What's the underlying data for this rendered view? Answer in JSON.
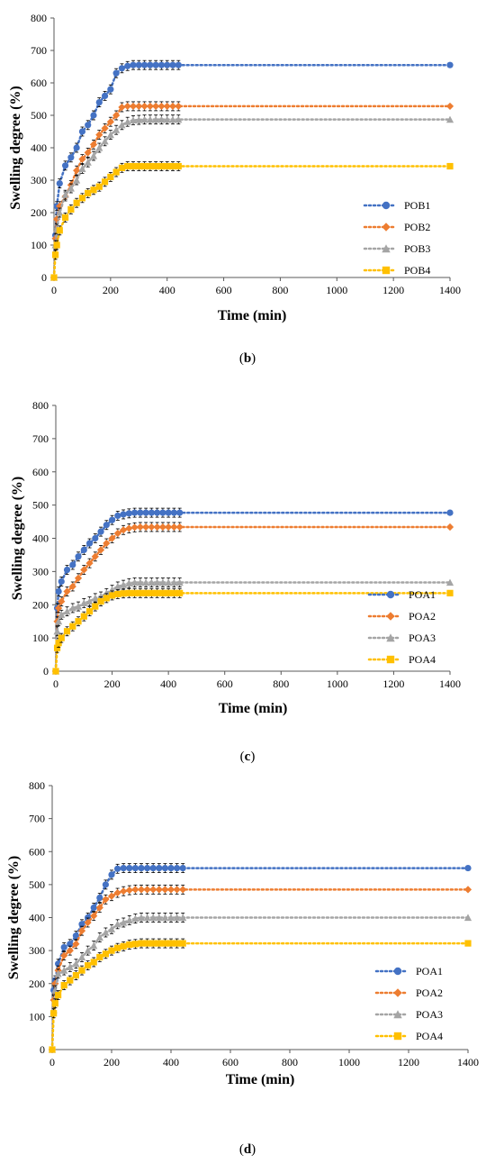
{
  "panels": [
    {
      "caption_letter": "b",
      "chart_data": {
        "type": "line",
        "title": "",
        "xlabel": "Time (min)",
        "ylabel": "Swelling degree (%)",
        "xlim": [
          0,
          1400
        ],
        "ylim": [
          0,
          800
        ],
        "xticks": [
          "0",
          "200",
          "400",
          "600",
          "800",
          "1000",
          "1200",
          "1400"
        ],
        "yticks": [
          "0",
          "100",
          "200",
          "300",
          "400",
          "500",
          "600",
          "700",
          "800"
        ],
        "legend_position": "right-lower",
        "grid": false,
        "x": [
          0,
          5,
          10,
          20,
          40,
          60,
          80,
          100,
          120,
          140,
          160,
          180,
          200,
          220,
          240,
          260,
          280,
          300,
          320,
          340,
          360,
          380,
          400,
          420,
          440,
          1400
        ],
        "series": [
          {
            "name": "POB1",
            "color": "#4472C4",
            "marker": "circle",
            "values": [
              0,
              130,
              220,
              290,
              345,
              370,
              400,
              450,
              470,
              500,
              540,
              560,
              580,
              630,
              645,
              652,
              655,
              655,
              655,
              655,
              655,
              655,
              655,
              655,
              655,
              655
            ]
          },
          {
            "name": "POB2",
            "color": "#ED7D31",
            "marker": "diamond",
            "values": [
              0,
              120,
              180,
              220,
              250,
              285,
              330,
              365,
              385,
              410,
              440,
              460,
              480,
              500,
              525,
              528,
              528,
              528,
              528,
              528,
              528,
              528,
              528,
              528,
              528,
              528
            ]
          },
          {
            "name": "POB3",
            "color": "#A5A5A5",
            "marker": "triangle",
            "values": [
              0,
              100,
              150,
              200,
              255,
              275,
              300,
              335,
              355,
              375,
              400,
              420,
              440,
              455,
              470,
              480,
              485,
              486,
              487,
              487,
              487,
              487,
              487,
              487,
              487,
              487
            ]
          },
          {
            "name": "POB4",
            "color": "#FFC000",
            "marker": "square",
            "values": [
              0,
              70,
              100,
              145,
              185,
              210,
              230,
              245,
              260,
              270,
              280,
              295,
              310,
              325,
              338,
              343,
              343,
              343,
              343,
              343,
              343,
              343,
              343,
              343,
              343,
              343
            ]
          }
        ]
      }
    },
    {
      "caption_letter": "c",
      "chart_data": {
        "type": "line",
        "title": "",
        "xlabel": "Time (min)",
        "ylabel": "Swelling degree (%)",
        "xlim": [
          0,
          1400
        ],
        "ylim": [
          0,
          800
        ],
        "xticks": [
          "0",
          "200",
          "400",
          "600",
          "800",
          "1000",
          "1200",
          "1400"
        ],
        "yticks": [
          "0",
          "100",
          "200",
          "300",
          "400",
          "500",
          "600",
          "700",
          "800"
        ],
        "legend_position": "right-lower",
        "grid": false,
        "x": [
          0,
          5,
          10,
          20,
          40,
          60,
          80,
          100,
          120,
          140,
          160,
          180,
          200,
          220,
          240,
          260,
          280,
          300,
          320,
          340,
          360,
          380,
          400,
          420,
          440,
          1400
        ],
        "series": [
          {
            "name": "POA1",
            "color": "#4472C4",
            "marker": "circle",
            "values": [
              0,
              190,
              240,
              270,
              305,
              320,
              345,
              365,
              385,
              400,
              420,
              440,
              455,
              468,
              472,
              475,
              477,
              477,
              477,
              477,
              477,
              477,
              477,
              477,
              477,
              477
            ]
          },
          {
            "name": "POA2",
            "color": "#ED7D31",
            "marker": "diamond",
            "values": [
              0,
              150,
              190,
              210,
              240,
              255,
              280,
              305,
              325,
              345,
              365,
              385,
              400,
              415,
              425,
              430,
              433,
              434,
              434,
              434,
              434,
              434,
              434,
              434,
              434,
              434
            ]
          },
          {
            "name": "POA3",
            "color": "#A5A5A5",
            "marker": "triangle",
            "values": [
              0,
              120,
              150,
              170,
              180,
              190,
              195,
              205,
              210,
              220,
              225,
              235,
              245,
              255,
              260,
              265,
              267,
              267,
              267,
              267,
              267,
              267,
              267,
              267,
              267,
              267
            ]
          },
          {
            "name": "POA4",
            "color": "#FFC000",
            "marker": "square",
            "values": [
              0,
              70,
              85,
              100,
              120,
              135,
              150,
              165,
              180,
              195,
              210,
              220,
              228,
              232,
              234,
              235,
              235,
              235,
              235,
              235,
              235,
              235,
              235,
              235,
              235,
              235
            ]
          }
        ]
      }
    },
    {
      "caption_letter": "d",
      "chart_data": {
        "type": "line",
        "title": "",
        "xlabel": "Time (min)",
        "ylabel": "Swelling degree (%)",
        "xlim": [
          0,
          1400
        ],
        "ylim": [
          0,
          800
        ],
        "xticks": [
          "0",
          "200",
          "400",
          "600",
          "800",
          "1000",
          "1200",
          "1400"
        ],
        "yticks": [
          "0",
          "100",
          "200",
          "300",
          "400",
          "500",
          "600",
          "700",
          "800"
        ],
        "legend_position": "right-lower",
        "grid": false,
        "x": [
          0,
          5,
          10,
          20,
          40,
          60,
          80,
          100,
          120,
          140,
          160,
          180,
          200,
          220,
          240,
          260,
          280,
          300,
          320,
          340,
          360,
          380,
          400,
          420,
          440,
          1400
        ],
        "series": [
          {
            "name": "POA1",
            "color": "#4472C4",
            "marker": "circle",
            "values": [
              0,
              180,
              210,
              260,
              310,
              320,
              345,
              380,
              400,
              430,
              460,
              500,
              530,
              548,
              550,
              550,
              550,
              550,
              550,
              550,
              550,
              550,
              550,
              550,
              550,
              550
            ]
          },
          {
            "name": "POA2",
            "color": "#ED7D31",
            "marker": "diamond",
            "values": [
              0,
              150,
              200,
              240,
              285,
              300,
              320,
              360,
              385,
              405,
              430,
              455,
              465,
              475,
              480,
              483,
              485,
              485,
              485,
              485,
              485,
              485,
              485,
              485,
              485,
              485
            ]
          },
          {
            "name": "POA3",
            "color": "#A5A5A5",
            "marker": "triangle",
            "values": [
              0,
              120,
              180,
              230,
              240,
              250,
              260,
              280,
              300,
              315,
              340,
              355,
              365,
              380,
              385,
              392,
              397,
              400,
              400,
              400,
              400,
              400,
              400,
              400,
              400,
              400
            ]
          },
          {
            "name": "POA4",
            "color": "#FFC000",
            "marker": "square",
            "values": [
              0,
              110,
              140,
              165,
              195,
              210,
              225,
              240,
              255,
              265,
              280,
              290,
              300,
              308,
              313,
              318,
              320,
              322,
              322,
              322,
              322,
              322,
              322,
              322,
              322,
              322
            ]
          }
        ]
      }
    }
  ]
}
